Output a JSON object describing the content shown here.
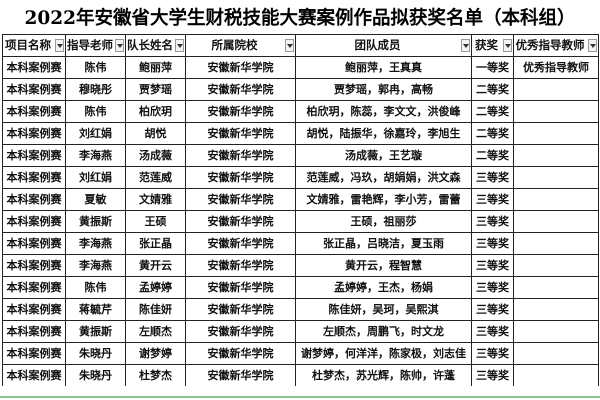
{
  "title": "2022年安徽省大学生财税技能大赛案例作品拟获奖名单（本科组）",
  "headers": [
    "项目名称",
    "指导老师",
    "队长姓名",
    "所属院校",
    "团队成员",
    "获奖",
    "优秀指导教师"
  ],
  "filter_icon": "dropdown-arrow-icon",
  "rows": [
    {
      "project": "本科案例赛",
      "advisor": "陈伟",
      "captain": "鲍丽萍",
      "school": "安徽新华学院",
      "members": "鲍丽萍，王真真",
      "award": "一等奖",
      "excellent": "优秀指导教师"
    },
    {
      "project": "本科案例赛",
      "advisor": "穆晓彤",
      "captain": "贾梦瑶",
      "school": "安徽新华学院",
      "members": "贾梦瑶，郭冉，高畅",
      "award": "二等奖",
      "excellent": ""
    },
    {
      "project": "本科案例赛",
      "advisor": "陈伟",
      "captain": "柏欣玥",
      "school": "安徽新华学院",
      "members": "柏欣玥，陈蕊，李文文，洪俊峰",
      "award": "二等奖",
      "excellent": ""
    },
    {
      "project": "本科案例赛",
      "advisor": "刘红娟",
      "captain": "胡悦",
      "school": "安徽新华学院",
      "members": "胡悦，陆振华，徐嘉玲，李旭生",
      "award": "二等奖",
      "excellent": ""
    },
    {
      "project": "本科案例赛",
      "advisor": "李海燕",
      "captain": "汤成薇",
      "school": "安徽新华学院",
      "members": "汤成薇，王艺璇",
      "award": "二等奖",
      "excellent": ""
    },
    {
      "project": "本科案例赛",
      "advisor": "刘红娟",
      "captain": "范莲威",
      "school": "安徽新华学院",
      "members": "范莲威，冯玖，胡娟娟，洪文森",
      "award": "三等奖",
      "excellent": ""
    },
    {
      "project": "本科案例赛",
      "advisor": "夏敏",
      "captain": "文婧雅",
      "school": "安徽新华学院",
      "members": "文婧雅，雷艳辉，李小芳，雷蕾",
      "award": "三等奖",
      "excellent": ""
    },
    {
      "project": "本科案例赛",
      "advisor": "黄振斯",
      "captain": "王硕",
      "school": "安徽新华学院",
      "members": "王硕，祖丽莎",
      "award": "三等奖",
      "excellent": ""
    },
    {
      "project": "本科案例赛",
      "advisor": "李海燕",
      "captain": "张正晶",
      "school": "安徽新华学院",
      "members": "张正晶，吕晓洁，夏玉雨",
      "award": "三等奖",
      "excellent": ""
    },
    {
      "project": "本科案例赛",
      "advisor": "李海燕",
      "captain": "黄开云",
      "school": "安徽新华学院",
      "members": "黄开云，程智慧",
      "award": "三等奖",
      "excellent": ""
    },
    {
      "project": "本科案例赛",
      "advisor": "陈伟",
      "captain": "孟婷婷",
      "school": "安徽新华学院",
      "members": "孟婷婷，王杰，杨娟",
      "award": "三等奖",
      "excellent": ""
    },
    {
      "project": "本科案例赛",
      "advisor": "蒋毓芹",
      "captain": "陈佳妍",
      "school": "安徽新华学院",
      "members": "陈佳妍，吴珂，吴熙淇",
      "award": "三等奖",
      "excellent": ""
    },
    {
      "project": "本科案例赛",
      "advisor": "黄振斯",
      "captain": "左顺杰",
      "school": "安徽新华学院",
      "members": "左顺杰，周鹏飞，时文龙",
      "award": "三等奖",
      "excellent": ""
    },
    {
      "project": "本科案例赛",
      "advisor": "朱晓丹",
      "captain": "谢梦婷",
      "school": "安徽新华学院",
      "members": "谢梦婷，何洋洋，陈家极，刘志佳",
      "award": "三等奖",
      "excellent": ""
    },
    {
      "project": "本科案例赛",
      "advisor": "朱晓丹",
      "captain": "杜梦杰",
      "school": "安徽新华学院",
      "members": "杜梦杰，苏光辉，陈帅，许蓬",
      "award": "三等奖",
      "excellent": ""
    }
  ]
}
